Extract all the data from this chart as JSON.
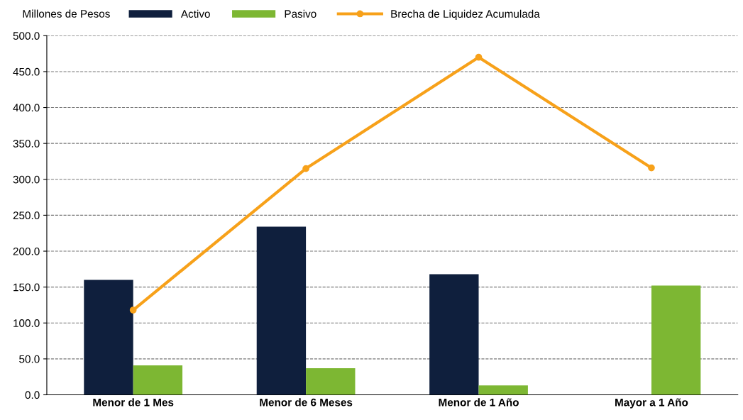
{
  "chart_data": {
    "type": "bar",
    "ylabel": "Millones de Pesos",
    "categories": [
      "Menor de 1 Mes",
      "Menor de 6 Meses",
      "Menor de 1 Año",
      "Mayor a 1 Año"
    ],
    "series": [
      {
        "name": "Activo",
        "color": "#0f1f3d",
        "values": [
          160,
          234,
          168,
          0
        ]
      },
      {
        "name": "Pasivo",
        "color": "#7db733",
        "values": [
          41,
          37,
          13,
          152
        ]
      },
      {
        "name": "Brecha de Liquidez Acumulada",
        "type": "line",
        "color": "#f7a11a",
        "values": [
          118,
          315,
          470,
          316
        ],
        "marker": "circle"
      }
    ],
    "ylim": [
      0,
      500
    ],
    "yticks": [
      {
        "value": 0,
        "label": "0.0"
      },
      {
        "value": 50,
        "label": "50.0"
      },
      {
        "value": 100,
        "label": "100.0"
      },
      {
        "value": 150,
        "label": "150.0"
      },
      {
        "value": 200,
        "label": "200.0"
      },
      {
        "value": 250,
        "label": "250.0"
      },
      {
        "value": 300,
        "label": "300.0"
      },
      {
        "value": 350,
        "label": "350.0"
      },
      {
        "value": 400,
        "label": "400.0"
      },
      {
        "value": 450,
        "label": "450.0"
      },
      {
        "value": 500,
        "label": "500.0"
      }
    ],
    "grid": "y",
    "legend": "top"
  }
}
